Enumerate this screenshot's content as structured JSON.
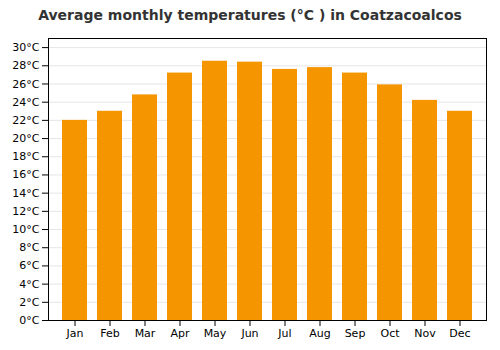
{
  "chart_data": {
    "type": "bar",
    "title": "Average monthly temperatures (°C ) in Coatzacoalcos",
    "categories": [
      "Jan",
      "Feb",
      "Mar",
      "Apr",
      "May",
      "Jun",
      "Jul",
      "Aug",
      "Sep",
      "Oct",
      "Nov",
      "Dec"
    ],
    "values": [
      22.0,
      23.0,
      24.8,
      27.2,
      28.5,
      28.4,
      27.6,
      27.8,
      27.2,
      25.9,
      24.2,
      23.0
    ],
    "color": "#F59500",
    "ylim": [
      0,
      31
    ],
    "yticks": [
      {
        "value": 0,
        "label": "0°C"
      },
      {
        "value": 2,
        "label": "2°C"
      },
      {
        "value": 4,
        "label": "4°C"
      },
      {
        "value": 6,
        "label": "6°C"
      },
      {
        "value": 8,
        "label": "8°C"
      },
      {
        "value": 10,
        "label": "10°C"
      },
      {
        "value": 12,
        "label": "12°C"
      },
      {
        "value": 14,
        "label": "14°C"
      },
      {
        "value": 16,
        "label": "16°C"
      },
      {
        "value": 18,
        "label": "18°C"
      },
      {
        "value": 20,
        "label": "20°C"
      },
      {
        "value": 22,
        "label": "22°C"
      },
      {
        "value": 24,
        "label": "24°C"
      },
      {
        "value": 26,
        "label": "26°C"
      },
      {
        "value": 28,
        "label": "28°C"
      },
      {
        "value": 30,
        "label": "30°C"
      }
    ],
    "grid": true
  }
}
